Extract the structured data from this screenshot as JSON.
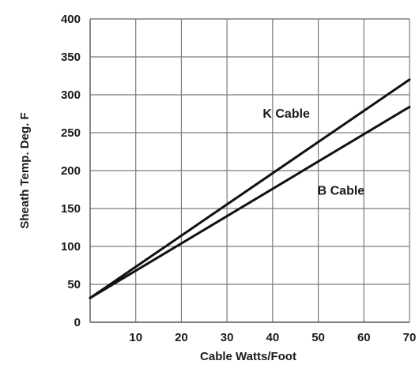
{
  "chart_data": {
    "type": "line",
    "title": "",
    "xlabel": "Cable Watts/Foot",
    "ylabel": "Sheath Temp. Deg. F",
    "xlim": [
      0,
      70
    ],
    "ylim": [
      0,
      400
    ],
    "xticks": [
      10,
      20,
      30,
      40,
      50,
      60,
      70
    ],
    "yticks": [
      0,
      50,
      100,
      150,
      200,
      250,
      300,
      350,
      400
    ],
    "grid": true,
    "legend": "none",
    "series": [
      {
        "name": "K Cable",
        "color": "#111111",
        "x": [
          0,
          70
        ],
        "y": [
          32,
          320
        ]
      },
      {
        "name": "B Cable",
        "color": "#111111",
        "x": [
          0,
          70
        ],
        "y": [
          32,
          284
        ]
      }
    ],
    "annotations": [
      {
        "text": "K Cable",
        "series": "K Cable",
        "x": 43,
        "y": 270
      },
      {
        "text": "B Cable",
        "series": "B Cable",
        "x": 55,
        "y": 168
      }
    ]
  }
}
